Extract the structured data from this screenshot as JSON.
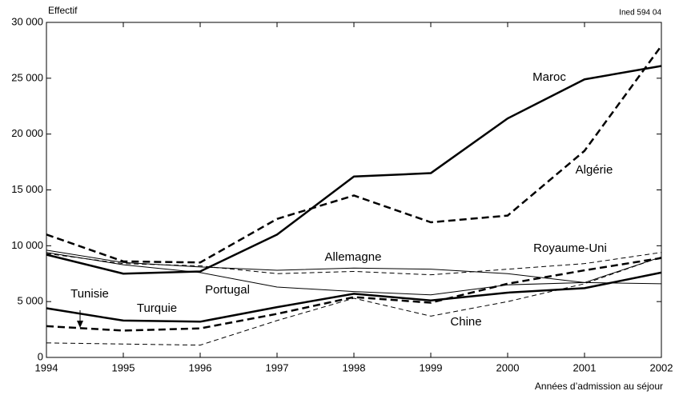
{
  "chart_data": {
    "type": "line",
    "y_label": "Effectif",
    "x_label": "Années d’admission au séjour",
    "annotation": "Ined 594 04",
    "x": [
      1994,
      1995,
      1996,
      1997,
      1998,
      1999,
      2000,
      2001,
      2002
    ],
    "xlim": [
      1994,
      2002
    ],
    "xticks": [
      1994,
      1995,
      1996,
      1997,
      1998,
      1999,
      2000,
      2001,
      2002
    ],
    "ylim": [
      0,
      30000
    ],
    "yticks": [
      0,
      {
        "value": 5000,
        "label": "5 000"
      },
      {
        "value": 10000,
        "label": "10 000"
      },
      {
        "value": 15000,
        "label": "15 000"
      },
      {
        "value": 20000,
        "label": "20 000"
      },
      {
        "value": 25000,
        "label": "25 000"
      },
      {
        "value": 30000,
        "label": "30 000"
      }
    ],
    "series": [
      {
        "name": "Maroc",
        "color": "#000000",
        "line_style": "solid",
        "line_width": 2.5,
        "values": [
          9200,
          7500,
          7700,
          11000,
          16200,
          16500,
          21400,
          24900,
          26100
        ]
      },
      {
        "name": "Algérie",
        "color": "#000000",
        "line_style": "dashed",
        "line_width": 2.5,
        "values": [
          11000,
          8600,
          8500,
          12400,
          14500,
          12100,
          12700,
          18500,
          27900
        ]
      },
      {
        "name": "Royaume-Uni",
        "color": "#000000",
        "line_style": "dashed",
        "line_width": 1,
        "values": [
          9300,
          8400,
          8200,
          7500,
          7700,
          7400,
          7900,
          8400,
          9400
        ]
      },
      {
        "name": "Allemagne",
        "color": "#000000",
        "line_style": "solid",
        "line_width": 1,
        "values": [
          9600,
          8500,
          8100,
          7800,
          8000,
          7900,
          7500,
          6700,
          6600
        ]
      },
      {
        "name": "Portugal",
        "color": "#000000",
        "line_style": "solid",
        "line_width": 1,
        "values": [
          9400,
          8300,
          7600,
          6300,
          5900,
          5600,
          6500,
          6700,
          9000
        ]
      },
      {
        "name": "Turquie",
        "color": "#000000",
        "line_style": "solid",
        "line_width": 2.5,
        "values": [
          4400,
          3300,
          3200,
          4500,
          5700,
          5100,
          5800,
          6200,
          7600
        ]
      },
      {
        "name": "Tunisie",
        "color": "#000000",
        "line_style": "dashed",
        "line_width": 2.5,
        "values": [
          2800,
          2400,
          2600,
          3900,
          5400,
          4900,
          6600,
          7800,
          8900
        ]
      },
      {
        "name": "Chine",
        "color": "#000000",
        "line_style": "dashed",
        "line_width": 1,
        "values": [
          1300,
          1200,
          1100,
          3300,
          5300,
          3700,
          5000,
          6600,
          9000
        ]
      }
    ]
  }
}
